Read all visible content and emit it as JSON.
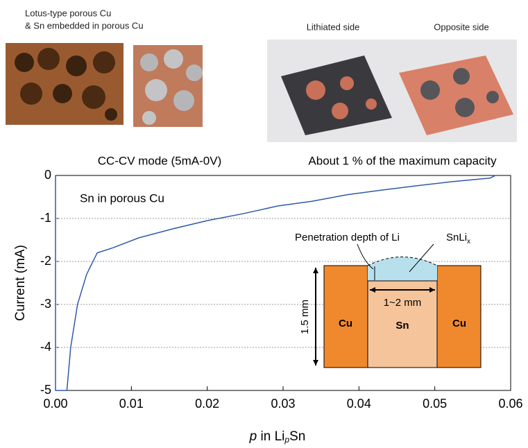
{
  "chart_data": {
    "type": "line",
    "photo_captions": [
      "Lotus-type porous Cu",
      "& Sn embedded in porous Cu",
      "Lithiated side",
      "Opposite side"
    ],
    "annotations": [
      "CC-CV mode (5mA-0V)",
      "About 1 % of the maximum capacity",
      "Sn in porous Cu"
    ],
    "y_label": "Current (mA)",
    "x_label": [
      "p",
      " in Li",
      "p",
      "Sn"
    ],
    "inset": {
      "penetration": "Penetration depth of Li",
      "compound": "SnLi",
      "compound_sub": "x",
      "height": "1.5 mm",
      "width": "1~2 mm",
      "left": "Cu",
      "middle": "Sn",
      "right": "Cu"
    },
    "x": [
      0,
      0,
      0.0015,
      0.002,
      0.0029,
      0.0041,
      0.0055,
      0.0076,
      0.011,
      0.0155,
      0.02,
      0.0247,
      0.0293,
      0.0338,
      0.0384,
      0.043,
      0.0476,
      0.052,
      0.0573,
      0.058
    ],
    "values": [
      0,
      -5,
      -5,
      -4,
      -3,
      -2.3,
      -1.8,
      -1.68,
      -1.45,
      -1.24,
      -1.05,
      -0.89,
      -0.71,
      -0.6,
      -0.45,
      -0.34,
      -0.24,
      -0.15,
      -0.06,
      0
    ],
    "color": "#2e5aa8",
    "xlim": [
      0,
      0.06
    ],
    "ylim": [
      -5,
      0
    ],
    "xticks": [
      {
        "value": 0,
        "label": "0.00"
      },
      0.01,
      0.02,
      0.03,
      0.04,
      0.05,
      0.06
    ],
    "yticks": [
      0,
      -1,
      -2,
      -3,
      -4,
      -5
    ],
    "grid": true
  }
}
